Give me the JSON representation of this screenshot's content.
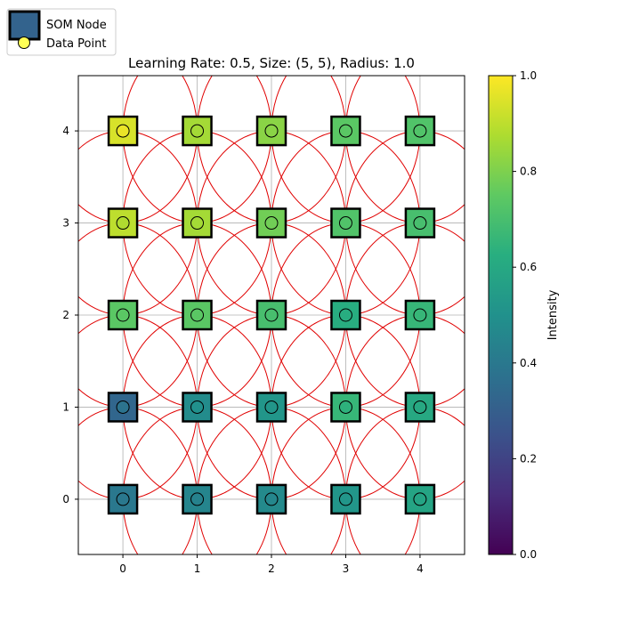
{
  "chart_data": {
    "type": "scatter",
    "title": "Learning Rate: 0.5, Size: (5, 5), Radius: 1.0",
    "xlabel": "",
    "ylabel": "",
    "xlim": [
      -0.6,
      4.6
    ],
    "ylim": [
      -0.6,
      4.6
    ],
    "xticks": [
      0,
      1,
      2,
      3,
      4
    ],
    "yticks": [
      0,
      1,
      2,
      3,
      4
    ],
    "grid": true,
    "radius": 1.0,
    "legend": {
      "placement": "top-left",
      "entries": [
        "SOM Node",
        "Data Point"
      ]
    },
    "colorbar": {
      "label": "Intensity",
      "range": [
        0,
        1
      ],
      "ticks": [
        "0.0",
        "0.2",
        "0.4",
        "0.6",
        "0.8",
        "1.0"
      ]
    },
    "circle_color": "#e00000",
    "nodes": [
      {
        "x": 0,
        "y": 0,
        "node_value": 0.4,
        "point_value": 0.4
      },
      {
        "x": 1,
        "y": 0,
        "node_value": 0.45,
        "point_value": 0.44
      },
      {
        "x": 2,
        "y": 0,
        "node_value": 0.47,
        "point_value": 0.46
      },
      {
        "x": 3,
        "y": 0,
        "node_value": 0.52,
        "point_value": 0.52
      },
      {
        "x": 4,
        "y": 0,
        "node_value": 0.58,
        "point_value": 0.58
      },
      {
        "x": 0,
        "y": 1,
        "node_value": 0.33,
        "point_value": 0.38
      },
      {
        "x": 1,
        "y": 1,
        "node_value": 0.48,
        "point_value": 0.5
      },
      {
        "x": 2,
        "y": 1,
        "node_value": 0.52,
        "point_value": 0.52
      },
      {
        "x": 3,
        "y": 1,
        "node_value": 0.66,
        "point_value": 0.64
      },
      {
        "x": 4,
        "y": 1,
        "node_value": 0.6,
        "point_value": 0.6
      },
      {
        "x": 0,
        "y": 2,
        "node_value": 0.74,
        "point_value": 0.74
      },
      {
        "x": 1,
        "y": 2,
        "node_value": 0.74,
        "point_value": 0.74
      },
      {
        "x": 2,
        "y": 2,
        "node_value": 0.7,
        "point_value": 0.7
      },
      {
        "x": 3,
        "y": 2,
        "node_value": 0.62,
        "point_value": 0.62
      },
      {
        "x": 4,
        "y": 2,
        "node_value": 0.66,
        "point_value": 0.66
      },
      {
        "x": 0,
        "y": 3,
        "node_value": 0.9,
        "point_value": 0.88
      },
      {
        "x": 1,
        "y": 3,
        "node_value": 0.86,
        "point_value": 0.86
      },
      {
        "x": 2,
        "y": 3,
        "node_value": 0.78,
        "point_value": 0.78
      },
      {
        "x": 3,
        "y": 3,
        "node_value": 0.72,
        "point_value": 0.72
      },
      {
        "x": 4,
        "y": 3,
        "node_value": 0.7,
        "point_value": 0.7
      },
      {
        "x": 0,
        "y": 4,
        "node_value": 0.94,
        "point_value": 0.97
      },
      {
        "x": 1,
        "y": 4,
        "node_value": 0.86,
        "point_value": 0.86
      },
      {
        "x": 2,
        "y": 4,
        "node_value": 0.82,
        "point_value": 0.82
      },
      {
        "x": 3,
        "y": 4,
        "node_value": 0.74,
        "point_value": 0.74
      },
      {
        "x": 4,
        "y": 4,
        "node_value": 0.72,
        "point_value": 0.72
      }
    ]
  }
}
